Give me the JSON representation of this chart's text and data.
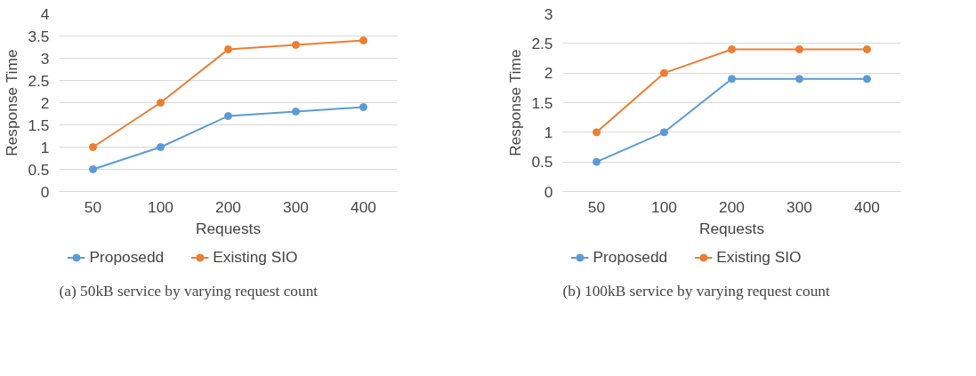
{
  "chart_data": [
    {
      "type": "line",
      "xlabel": "Requests",
      "ylabel": "Response Time",
      "categories": [
        "50",
        "100",
        "200",
        "300",
        "400"
      ],
      "series": [
        {
          "name": "Proposedd",
          "color": "#5b9bd5",
          "values": [
            0.5,
            1,
            1.7,
            1.8,
            1.9
          ]
        },
        {
          "name": "Existing SIO",
          "color": "#ed7d31",
          "values": [
            1,
            2,
            3.2,
            3.3,
            3.4
          ]
        }
      ],
      "ylim": [
        0,
        4
      ],
      "yticks": [
        0,
        0.5,
        1,
        1.5,
        2,
        2.5,
        3,
        3.5,
        4
      ],
      "grid": "y",
      "legend": "bottom",
      "marker": "circle",
      "line_style": "solid",
      "annotations": [
        "(a) 50kB service by varying request count"
      ]
    },
    {
      "type": "line",
      "xlabel": "Requests",
      "ylabel": "Response Time",
      "categories": [
        "50",
        "100",
        "200",
        "300",
        "400"
      ],
      "series": [
        {
          "name": "Proposedd",
          "color": "#5b9bd5",
          "values": [
            0.5,
            1,
            1.9,
            1.9,
            1.9
          ]
        },
        {
          "name": "Existing SIO",
          "color": "#ed7d31",
          "values": [
            1,
            2,
            2.4,
            2.4,
            2.4
          ]
        }
      ],
      "ylim": [
        0,
        3
      ],
      "yticks": [
        0,
        0.5,
        1,
        1.5,
        2,
        2.5,
        3
      ],
      "grid": "y",
      "legend": "bottom",
      "marker": "circle",
      "line_style": "solid",
      "annotations": [
        "(b) 100kB service by varying request count"
      ]
    }
  ]
}
